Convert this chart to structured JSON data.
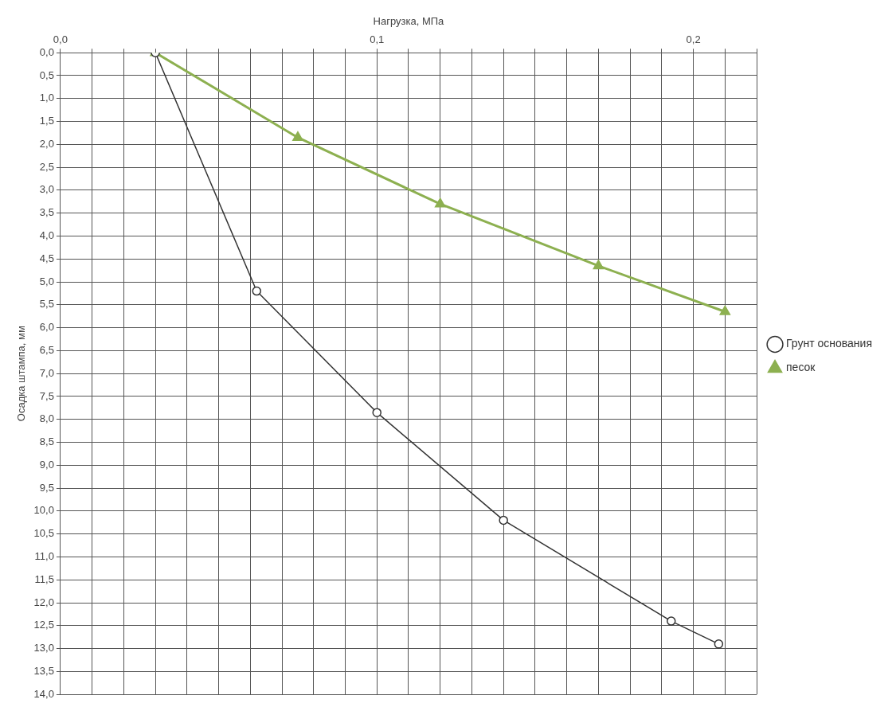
{
  "chart_data": {
    "type": "line",
    "xlabel": "Нагрузка, МПа",
    "ylabel": "Осадка штампа, мм",
    "xlim": [
      0,
      0.22
    ],
    "ylim": [
      14,
      0
    ],
    "xticks": [
      {
        "value": 0,
        "label": "0,0"
      },
      {
        "value": 0.01,
        "label": null
      },
      {
        "value": 0.02,
        "label": null
      },
      {
        "value": 0.03,
        "label": null
      },
      {
        "value": 0.04,
        "label": null
      },
      {
        "value": 0.05,
        "label": null
      },
      {
        "value": 0.06,
        "label": null
      },
      {
        "value": 0.07,
        "label": null
      },
      {
        "value": 0.08,
        "label": null
      },
      {
        "value": 0.09,
        "label": null
      },
      {
        "value": 0.1,
        "label": "0,1"
      },
      {
        "value": 0.11,
        "label": null
      },
      {
        "value": 0.12,
        "label": null
      },
      {
        "value": 0.13,
        "label": null
      },
      {
        "value": 0.14,
        "label": null
      },
      {
        "value": 0.15,
        "label": null
      },
      {
        "value": 0.16,
        "label": null
      },
      {
        "value": 0.17,
        "label": null
      },
      {
        "value": 0.18,
        "label": null
      },
      {
        "value": 0.19,
        "label": null
      },
      {
        "value": 0.2,
        "label": "0,2"
      },
      {
        "value": 0.21,
        "label": null
      },
      {
        "value": 0.22,
        "label": null
      }
    ],
    "yticks": [
      {
        "value": 0,
        "label": "0,0"
      },
      {
        "value": 0.5,
        "label": "0,5"
      },
      {
        "value": 1,
        "label": "1,0"
      },
      {
        "value": 1.5,
        "label": "1,5"
      },
      {
        "value": 2,
        "label": "2,0"
      },
      {
        "value": 2.5,
        "label": "2,5"
      },
      {
        "value": 3,
        "label": "3,0"
      },
      {
        "value": 3.5,
        "label": "3,5"
      },
      {
        "value": 4,
        "label": "4,0"
      },
      {
        "value": 4.5,
        "label": "4,5"
      },
      {
        "value": 5,
        "label": "5,0"
      },
      {
        "value": 5.5,
        "label": "5,5"
      },
      {
        "value": 6,
        "label": "6,0"
      },
      {
        "value": 6.5,
        "label": "6,5"
      },
      {
        "value": 7,
        "label": "7,0"
      },
      {
        "value": 7.5,
        "label": "7,5"
      },
      {
        "value": 8,
        "label": "8,0"
      },
      {
        "value": 8.5,
        "label": "8,5"
      },
      {
        "value": 9,
        "label": "9,0"
      },
      {
        "value": 9.5,
        "label": "9,5"
      },
      {
        "value": 10,
        "label": "10,0"
      },
      {
        "value": 10.5,
        "label": "10,5"
      },
      {
        "value": 11,
        "label": "11,0"
      },
      {
        "value": 11.5,
        "label": "11,5"
      },
      {
        "value": 12,
        "label": "12,0"
      },
      {
        "value": 12.5,
        "label": "12,5"
      },
      {
        "value": 13,
        "label": "13,0"
      },
      {
        "value": 13.5,
        "label": "13,5"
      },
      {
        "value": 14,
        "label": "14,0"
      }
    ],
    "grid": true,
    "legend": "right",
    "series": [
      {
        "name": "Грунт основания",
        "color": "#333333",
        "marker": "circle",
        "x": [
          0.03,
          0.062,
          0.1,
          0.14,
          0.193,
          0.208
        ],
        "values": [
          0,
          5.2,
          7.85,
          10.2,
          12.4,
          12.9
        ]
      },
      {
        "name": "песок",
        "color": "#8db050",
        "marker": "triangle",
        "x": [
          0.03,
          0.075,
          0.12,
          0.17,
          0.21
        ],
        "values": [
          0,
          1.85,
          3.3,
          4.65,
          5.65
        ]
      }
    ]
  }
}
